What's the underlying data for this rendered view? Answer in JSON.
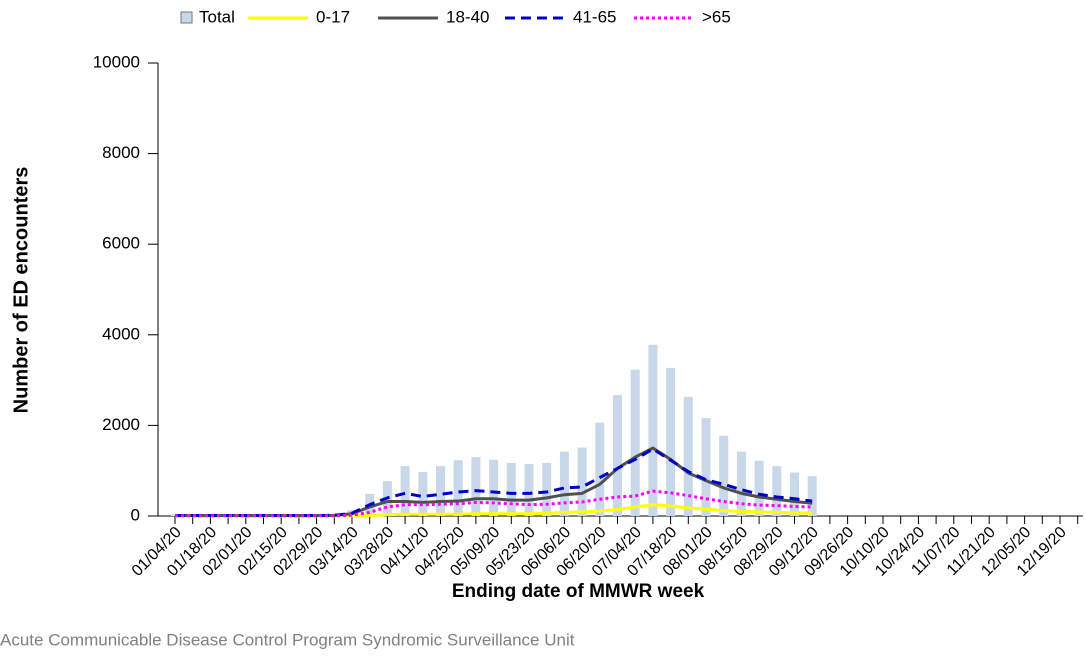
{
  "chart_data": {
    "type": "combo",
    "x_label": "Ending date of MMWR week",
    "y_label": "Number of ED encounters",
    "note": "Acute Communicable Disease Control Program Syndromic Surveillance Unit",
    "categories": [
      "01/04/20",
      null,
      "01/18/20",
      null,
      "02/01/20",
      null,
      "02/15/20",
      null,
      "02/29/20",
      null,
      "03/14/20",
      null,
      "03/28/20",
      null,
      "04/11/20",
      null,
      "04/25/20",
      null,
      "05/09/20",
      null,
      "05/23/20",
      null,
      "06/06/20",
      null,
      "06/20/20",
      null,
      "07/04/20",
      null,
      "07/18/20",
      null,
      "08/01/20",
      null,
      "08/15/20",
      null,
      "08/29/20",
      null,
      "09/12/20",
      null,
      "09/26/20",
      null,
      "10/10/20",
      null,
      "10/24/20",
      null,
      "11/07/20",
      null,
      "11/21/20",
      null,
      "12/05/20",
      null,
      "12/19/20",
      null
    ],
    "ylim": [
      0,
      10000
    ],
    "yticks": [
      0,
      2000,
      4000,
      6000,
      8000,
      10000
    ],
    "legend": "top",
    "series": [
      {
        "name": "Total",
        "type": "bar",
        "color": "#c8d8ea",
        "values": [
          40,
          40,
          40,
          35,
          35,
          35,
          35,
          40,
          40,
          50,
          130,
          490,
          770,
          1100,
          970,
          1100,
          1230,
          1300,
          1240,
          1170,
          1150,
          1170,
          1420,
          1510,
          2060,
          2670,
          3230,
          3780,
          3270,
          2630,
          2160,
          1770,
          1420,
          1220,
          1100,
          960,
          880,
          null,
          null,
          null,
          null,
          null,
          null,
          null,
          null,
          null,
          null,
          null,
          null,
          null,
          null,
          null
        ]
      },
      {
        "name": "0-17",
        "type": "line",
        "dash": "solid",
        "color": "#ffff00",
        "values": [
          2,
          2,
          2,
          2,
          2,
          2,
          2,
          2,
          2,
          2,
          5,
          10,
          30,
          40,
          40,
          40,
          40,
          50,
          50,
          50,
          50,
          60,
          80,
          90,
          110,
          140,
          200,
          250,
          220,
          180,
          150,
          120,
          100,
          90,
          80,
          70,
          60,
          null,
          null,
          null,
          null,
          null,
          null,
          null,
          null,
          null,
          null,
          null,
          null,
          null,
          null,
          null
        ]
      },
      {
        "name": "18-40",
        "type": "line",
        "dash": "solid",
        "color": "#505050",
        "values": [
          10,
          10,
          10,
          10,
          10,
          10,
          10,
          10,
          12,
          15,
          50,
          200,
          320,
          320,
          300,
          320,
          330,
          380,
          380,
          350,
          350,
          400,
          470,
          500,
          700,
          1050,
          1300,
          1500,
          1250,
          950,
          780,
          620,
          500,
          420,
          370,
          320,
          280,
          null,
          null,
          null,
          null,
          null,
          null,
          null,
          null,
          null,
          null,
          null,
          null,
          null,
          null,
          null
        ]
      },
      {
        "name": "41-65",
        "type": "line",
        "dash": "dashed",
        "color": "#0000cc",
        "values": [
          10,
          10,
          10,
          10,
          10,
          10,
          10,
          10,
          12,
          15,
          60,
          250,
          400,
          500,
          430,
          480,
          530,
          560,
          530,
          500,
          500,
          530,
          620,
          640,
          850,
          1050,
          1250,
          1480,
          1230,
          980,
          800,
          700,
          580,
          480,
          420,
          380,
          330,
          null,
          null,
          null,
          null,
          null,
          null,
          null,
          null,
          null,
          null,
          null,
          null,
          null,
          null,
          null
        ]
      },
      {
        "name": ">65",
        "type": "line",
        "dash": "dotted",
        "color": "#ff00ff",
        "values": [
          5,
          5,
          5,
          5,
          5,
          5,
          5,
          5,
          5,
          5,
          20,
          80,
          200,
          250,
          250,
          260,
          270,
          300,
          290,
          270,
          250,
          260,
          290,
          310,
          370,
          420,
          440,
          550,
          510,
          450,
          380,
          320,
          270,
          240,
          230,
          210,
          200,
          null,
          null,
          null,
          null,
          null,
          null,
          null,
          null,
          null,
          null,
          null,
          null,
          null,
          null,
          null
        ]
      }
    ]
  }
}
